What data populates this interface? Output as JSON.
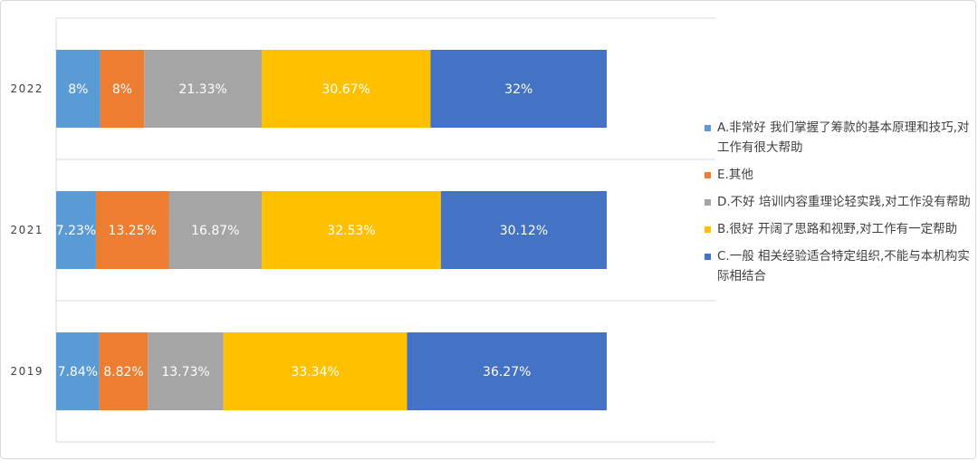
{
  "chart_data": {
    "type": "bar",
    "orientation": "horizontal",
    "stacked": true,
    "categories": [
      "2022",
      "2021",
      "2019"
    ],
    "series": [
      {
        "name": "A.非常好 我们掌握了筹款的基本原理和技巧,对工作有很大帮助",
        "color": "#5b9bd5",
        "values": [
          8,
          7.23,
          7.84
        ],
        "labels": [
          "8%",
          "7.23%",
          "7.84%"
        ]
      },
      {
        "name": "E.其他",
        "color": "#ed7d31",
        "values": [
          8,
          13.25,
          8.82
        ],
        "labels": [
          "8%",
          "13.25%",
          "8.82%"
        ]
      },
      {
        "name": "D.不好 培训内容重理论轻实践,对工作没有帮助",
        "color": "#a5a5a5",
        "values": [
          21.33,
          16.87,
          13.73
        ],
        "labels": [
          "21.33%",
          "16.87%",
          "13.73%"
        ]
      },
      {
        "name": "B.很好 开阔了思路和视野,对工作有一定帮助",
        "color": "#ffc000",
        "values": [
          30.67,
          32.53,
          33.34
        ],
        "labels": [
          "30.67%",
          "32.53%",
          "33.34%"
        ]
      },
      {
        "name": "C.一般 相关经验适合特定组织,不能与本机构实际相结合",
        "color": "#4472c4",
        "values": [
          32,
          30.12,
          36.27
        ],
        "labels": [
          "32%",
          "30.12%",
          "36.27%"
        ]
      }
    ],
    "legend_order": [
      0,
      1,
      2,
      3,
      4
    ],
    "grid": true,
    "legend_position": "right",
    "label_color": "#ffffff"
  }
}
